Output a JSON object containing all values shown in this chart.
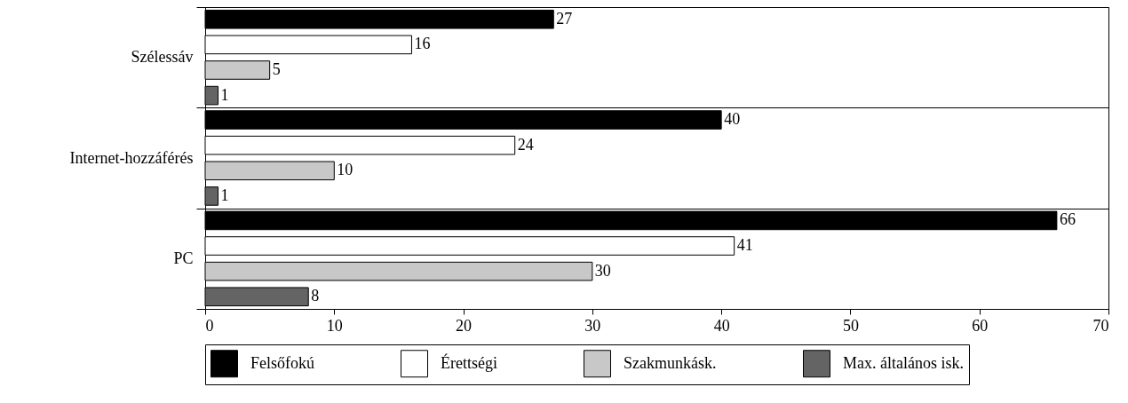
{
  "chart_data": {
    "type": "bar",
    "orientation": "horizontal",
    "categories": [
      "Szélessáv",
      "Internet-hozzáférés",
      "PC"
    ],
    "series": [
      {
        "name": "Felsőfokú",
        "color": "#000000",
        "values": [
          27,
          40,
          66
        ]
      },
      {
        "name": "Érettségi",
        "color": "#ffffff",
        "values": [
          16,
          24,
          41
        ]
      },
      {
        "name": "Szakmunkásk.",
        "color": "#c8c8c8",
        "values": [
          5,
          10,
          30
        ]
      },
      {
        "name": "Max. általános isk.",
        "color": "#646464",
        "values": [
          1,
          1,
          8
        ]
      }
    ],
    "xlim": [
      0,
      70
    ],
    "xticks": [
      0,
      10,
      20,
      30,
      40,
      50,
      60,
      70
    ],
    "data_labels": true,
    "grid": "y",
    "legend": "bottom"
  }
}
